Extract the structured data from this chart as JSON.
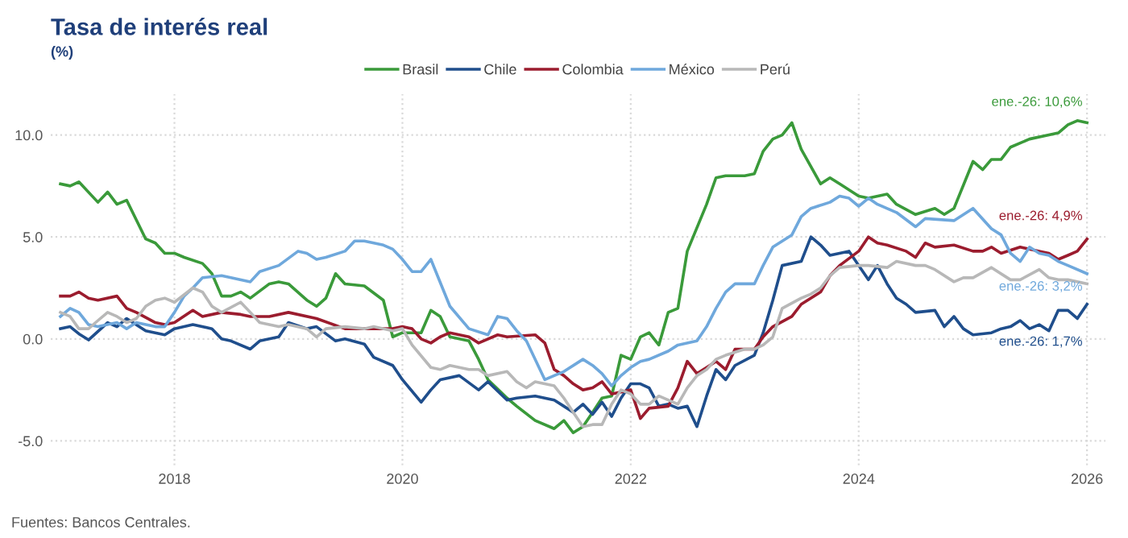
{
  "chart_data": {
    "type": "line",
    "title": "Tasa de interés real",
    "subtitle": "(%)",
    "series": [
      {
        "name": "Brasil",
        "color": "#3a9a3a",
        "x": [
          "2017-01",
          "2017-02",
          "2017-03",
          "2017-05",
          "2017-06",
          "2017-07",
          "2017-08",
          "2017-10",
          "2017-11",
          "2017-12",
          "2018-01",
          "2018-02",
          "2018-04",
          "2018-05",
          "2018-06",
          "2018-07",
          "2018-08",
          "2018-09",
          "2018-11",
          "2018-12",
          "2019-01",
          "2019-03",
          "2019-04",
          "2019-05",
          "2019-06",
          "2019-07",
          "2019-09",
          "2019-11",
          "2019-12",
          "2020-01",
          "2020-03",
          "2020-04",
          "2020-05",
          "2020-06",
          "2020-08",
          "2020-09",
          "2020-10",
          "2020-12",
          "2021-01",
          "2021-03",
          "2021-05",
          "2021-06",
          "2021-07",
          "2021-08",
          "2021-09",
          "2021-10",
          "2021-11",
          "2021-12",
          "2022-01",
          "2022-02",
          "2022-03",
          "2022-04",
          "2022-05",
          "2022-06",
          "2022-07",
          "2022-09",
          "2022-10",
          "2022-11",
          "2023-01",
          "2023-02",
          "2023-03",
          "2023-04",
          "2023-05",
          "2023-06",
          "2023-07",
          "2023-09",
          "2023-10",
          "2023-11",
          "2024-01",
          "2024-02",
          "2024-04",
          "2024-05",
          "2024-07",
          "2024-09",
          "2024-10",
          "2024-11",
          "2025-01",
          "2025-02",
          "2025-03",
          "2025-04",
          "2025-05",
          "2025-07",
          "2025-09",
          "2025-10",
          "2025-11",
          "2025-12",
          "2026-01"
        ],
        "values": [
          7.6,
          7.5,
          7.7,
          6.7,
          7.2,
          6.6,
          6.8,
          4.9,
          4.7,
          4.2,
          4.2,
          4.0,
          3.7,
          3.2,
          2.1,
          2.1,
          2.3,
          2.0,
          2.7,
          2.8,
          2.7,
          1.9,
          1.6,
          2.0,
          3.2,
          2.7,
          2.6,
          1.9,
          0.1,
          0.3,
          0.3,
          1.4,
          1.1,
          0.1,
          -0.1,
          -1.0,
          -2.0,
          -2.9,
          -3.3,
          -4.0,
          -4.4,
          -4.0,
          -4.6,
          -4.3,
          -3.6,
          -2.9,
          -2.8,
          -0.8,
          -1.0,
          0.1,
          0.3,
          -0.3,
          1.3,
          1.5,
          4.3,
          6.6,
          7.9,
          8.0,
          8.0,
          8.1,
          9.2,
          9.8,
          10.0,
          10.6,
          9.3,
          7.6,
          7.9,
          7.6,
          7.0,
          6.9,
          7.1,
          6.6,
          6.1,
          6.4,
          6.1,
          6.4,
          8.7,
          8.3,
          8.8,
          8.8,
          9.4,
          9.8,
          10.0,
          10.1,
          10.5,
          10.7,
          10.6
        ]
      },
      {
        "name": "Chile",
        "color": "#1f4e8c",
        "x": [
          "2017-01",
          "2017-02",
          "2017-03",
          "2017-04",
          "2017-06",
          "2017-07",
          "2017-08",
          "2017-10",
          "2017-12",
          "2018-01",
          "2018-03",
          "2018-05",
          "2018-06",
          "2018-07",
          "2018-09",
          "2018-10",
          "2018-12",
          "2019-01",
          "2019-03",
          "2019-04",
          "2019-06",
          "2019-07",
          "2019-09",
          "2019-10",
          "2019-12",
          "2020-01",
          "2020-03",
          "2020-04",
          "2020-05",
          "2020-07",
          "2020-09",
          "2020-10",
          "2020-12",
          "2021-01",
          "2021-03",
          "2021-05",
          "2021-06",
          "2021-07",
          "2021-08",
          "2021-09",
          "2021-10",
          "2021-11",
          "2021-12",
          "2022-01",
          "2022-02",
          "2022-03",
          "2022-04",
          "2022-05",
          "2022-06",
          "2022-07",
          "2022-08",
          "2022-09",
          "2022-10",
          "2022-11",
          "2022-12",
          "2023-02",
          "2023-03",
          "2023-04",
          "2023-05",
          "2023-07",
          "2023-08",
          "2023-09",
          "2023-10",
          "2023-12",
          "2024-02",
          "2024-03",
          "2024-04",
          "2024-05",
          "2024-06",
          "2024-07",
          "2024-09",
          "2024-10",
          "2024-11",
          "2024-12",
          "2025-01",
          "2025-03",
          "2025-04",
          "2025-05",
          "2025-06",
          "2025-07",
          "2025-08",
          "2025-09",
          "2025-10",
          "2025-11",
          "2025-12",
          "2026-01"
        ],
        "values": [
          0.5,
          0.6,
          0.25,
          -0.05,
          0.8,
          0.6,
          1.0,
          0.4,
          0.2,
          0.5,
          0.7,
          0.5,
          0.0,
          -0.1,
          -0.5,
          -0.1,
          0.1,
          0.8,
          0.5,
          0.6,
          -0.1,
          0.0,
          -0.25,
          -0.9,
          -1.3,
          -2.0,
          -3.1,
          -2.5,
          -2.0,
          -1.8,
          -2.5,
          -2.1,
          -3.0,
          -2.9,
          -2.8,
          -3.0,
          -3.3,
          -3.6,
          -3.2,
          -3.7,
          -3.1,
          -3.8,
          -2.9,
          -2.2,
          -2.2,
          -2.4,
          -3.3,
          -3.2,
          -3.4,
          -3.3,
          -4.3,
          -2.8,
          -1.5,
          -2.0,
          -1.3,
          -0.8,
          0.3,
          1.9,
          3.6,
          3.8,
          5.0,
          4.6,
          4.1,
          4.3,
          2.9,
          3.6,
          2.7,
          2.0,
          1.7,
          1.3,
          1.4,
          0.6,
          1.1,
          0.5,
          0.2,
          0.3,
          0.5,
          0.6,
          0.9,
          0.5,
          0.7,
          0.4,
          1.4,
          1.4,
          1.0,
          1.7
        ]
      },
      {
        "name": "Colombia",
        "color": "#9b1c2e",
        "x": [
          "2017-01",
          "2017-02",
          "2017-03",
          "2017-04",
          "2017-05",
          "2017-07",
          "2017-08",
          "2017-09",
          "2017-11",
          "2017-12",
          "2018-01",
          "2018-03",
          "2018-04",
          "2018-06",
          "2018-08",
          "2018-09",
          "2018-11",
          "2019-01",
          "2019-04",
          "2019-07",
          "2019-10",
          "2019-12",
          "2020-01",
          "2020-02",
          "2020-03",
          "2020-04",
          "2020-05",
          "2020-06",
          "2020-08",
          "2020-09",
          "2020-11",
          "2020-12",
          "2021-03",
          "2021-04",
          "2021-05",
          "2021-06",
          "2021-07",
          "2021-08",
          "2021-09",
          "2021-10",
          "2021-11",
          "2022-01",
          "2022-02",
          "2022-03",
          "2022-05",
          "2022-06",
          "2022-07",
          "2022-08",
          "2022-09",
          "2022-10",
          "2022-11",
          "2022-12",
          "2023-02",
          "2023-03",
          "2023-04",
          "2023-06",
          "2023-07",
          "2023-09",
          "2023-10",
          "2023-11",
          "2024-01",
          "2024-02",
          "2024-03",
          "2024-04",
          "2024-06",
          "2024-07",
          "2024-08",
          "2024-09",
          "2024-11",
          "2025-01",
          "2025-02",
          "2025-03",
          "2025-04",
          "2025-06",
          "2025-08",
          "2025-09",
          "2025-10",
          "2025-11",
          "2025-12",
          "2026-01"
        ],
        "values": [
          2.1,
          2.1,
          2.3,
          2.0,
          1.9,
          2.1,
          1.5,
          1.3,
          0.8,
          0.7,
          0.8,
          1.4,
          1.1,
          1.3,
          1.2,
          1.1,
          1.1,
          1.3,
          1.0,
          0.5,
          0.5,
          0.5,
          0.6,
          0.5,
          0.0,
          -0.2,
          0.1,
          0.3,
          0.1,
          -0.2,
          0.2,
          0.1,
          0.2,
          -0.2,
          -1.5,
          -1.8,
          -2.2,
          -2.5,
          -2.4,
          -2.1,
          -2.7,
          -2.5,
          -3.9,
          -3.4,
          -3.3,
          -2.4,
          -1.1,
          -1.7,
          -1.4,
          -1.1,
          -1.5,
          -0.5,
          -0.5,
          0.1,
          0.6,
          1.1,
          1.7,
          2.3,
          3.1,
          3.6,
          4.3,
          5.0,
          4.7,
          4.6,
          4.3,
          4.0,
          4.7,
          4.5,
          4.6,
          4.3,
          4.3,
          4.5,
          4.2,
          4.5,
          4.3,
          4.2,
          3.9,
          4.1,
          4.3,
          4.9
        ]
      },
      {
        "name": "México",
        "color": "#6fa8dc",
        "x": [
          "2017-01",
          "2017-02",
          "2017-03",
          "2017-04",
          "2017-05",
          "2017-07",
          "2017-08",
          "2017-09",
          "2017-11",
          "2017-12",
          "2018-01",
          "2018-02",
          "2018-03",
          "2018-04",
          "2018-06",
          "2018-07",
          "2018-09",
          "2018-10",
          "2018-12",
          "2019-02",
          "2019-03",
          "2019-04",
          "2019-05",
          "2019-07",
          "2019-08",
          "2019-09",
          "2019-11",
          "2019-12",
          "2020-01",
          "2020-02",
          "2020-03",
          "2020-04",
          "2020-06",
          "2020-08",
          "2020-10",
          "2020-11",
          "2020-12",
          "2021-01",
          "2021-02",
          "2021-04",
          "2021-05",
          "2021-06",
          "2021-08",
          "2021-09",
          "2021-10",
          "2021-11",
          "2021-12",
          "2022-01",
          "2022-02",
          "2022-03",
          "2022-05",
          "2022-06",
          "2022-08",
          "2022-09",
          "2022-10",
          "2022-11",
          "2022-12",
          "2023-02",
          "2023-03",
          "2023-04",
          "2023-06",
          "2023-07",
          "2023-08",
          "2023-10",
          "2023-11",
          "2023-12",
          "2024-01",
          "2024-02",
          "2024-03",
          "2024-05",
          "2024-07",
          "2024-08",
          "2024-11",
          "2025-01",
          "2025-03",
          "2025-04",
          "2025-05",
          "2025-06",
          "2025-07",
          "2025-08",
          "2025-09",
          "2025-10",
          "2025-11",
          "2026-01"
        ],
        "values": [
          1.1,
          1.5,
          1.3,
          0.7,
          0.6,
          0.8,
          0.5,
          0.8,
          0.6,
          0.6,
          1.3,
          2.1,
          2.5,
          3.0,
          3.1,
          3.0,
          2.8,
          3.3,
          3.6,
          4.3,
          4.2,
          3.9,
          4.0,
          4.3,
          4.8,
          4.8,
          4.6,
          4.4,
          3.9,
          3.3,
          3.3,
          3.9,
          1.6,
          0.5,
          0.2,
          1.1,
          1.0,
          0.4,
          -0.1,
          -2.0,
          -1.8,
          -1.6,
          -1.0,
          -1.3,
          -1.7,
          -2.3,
          -1.8,
          -1.4,
          -1.1,
          -1.0,
          -0.6,
          -0.3,
          -0.1,
          0.6,
          1.5,
          2.3,
          2.7,
          2.7,
          3.6,
          4.5,
          5.1,
          6.0,
          6.4,
          6.7,
          7.0,
          6.9,
          6.5,
          6.9,
          6.6,
          6.2,
          5.5,
          5.9,
          5.8,
          6.4,
          5.4,
          5.1,
          4.2,
          3.8,
          4.5,
          4.2,
          4.1,
          3.8,
          3.6,
          3.2
        ]
      },
      {
        "name": "Perú",
        "color": "#b8b8b8",
        "x": [
          "2017-01",
          "2017-02",
          "2017-03",
          "2017-04",
          "2017-05",
          "2017-06",
          "2017-07",
          "2017-08",
          "2017-09",
          "2017-10",
          "2017-11",
          "2017-12",
          "2018-01",
          "2018-03",
          "2018-04",
          "2018-05",
          "2018-06",
          "2018-08",
          "2018-09",
          "2018-10",
          "2018-12",
          "2019-01",
          "2019-03",
          "2019-04",
          "2019-05",
          "2019-07",
          "2019-09",
          "2019-10",
          "2019-12",
          "2020-01",
          "2020-02",
          "2020-04",
          "2020-05",
          "2020-06",
          "2020-08",
          "2020-09",
          "2020-10",
          "2020-12",
          "2021-01",
          "2021-02",
          "2021-03",
          "2021-05",
          "2021-06",
          "2021-07",
          "2021-08",
          "2021-09",
          "2021-10",
          "2021-11",
          "2021-12",
          "2022-01",
          "2022-02",
          "2022-03",
          "2022-04",
          "2022-06",
          "2022-07",
          "2022-08",
          "2022-09",
          "2022-10",
          "2022-11",
          "2023-01",
          "2023-02",
          "2023-03",
          "2023-04",
          "2023-05",
          "2023-07",
          "2023-08",
          "2023-09",
          "2023-10",
          "2023-11",
          "2024-01",
          "2024-02",
          "2024-04",
          "2024-05",
          "2024-07",
          "2024-08",
          "2024-09",
          "2024-11",
          "2024-12",
          "2025-01",
          "2025-03",
          "2025-05",
          "2025-06",
          "2025-08",
          "2025-09",
          "2025-10",
          "2025-11",
          "2026-01"
        ],
        "values": [
          1.3,
          1.1,
          0.5,
          0.5,
          0.9,
          1.3,
          1.1,
          0.8,
          1.0,
          1.6,
          1.9,
          2.0,
          1.8,
          2.5,
          2.3,
          1.6,
          1.3,
          1.8,
          1.3,
          0.8,
          0.6,
          0.7,
          0.5,
          0.1,
          0.5,
          0.6,
          0.5,
          0.6,
          0.4,
          0.5,
          -0.3,
          -1.4,
          -1.5,
          -1.3,
          -1.5,
          -1.5,
          -1.8,
          -1.6,
          -2.1,
          -2.4,
          -2.1,
          -2.3,
          -2.9,
          -3.6,
          -4.3,
          -4.2,
          -4.2,
          -3.2,
          -2.5,
          -2.7,
          -3.2,
          -3.2,
          -2.8,
          -3.2,
          -2.4,
          -1.8,
          -1.5,
          -1.0,
          -0.8,
          -0.5,
          -0.5,
          -0.3,
          0.1,
          1.5,
          2.0,
          2.2,
          2.5,
          3.1,
          3.5,
          3.6,
          3.6,
          3.5,
          3.8,
          3.6,
          3.6,
          3.4,
          2.8,
          3.0,
          3.0,
          3.5,
          2.9,
          2.9,
          3.4,
          3.0,
          2.9,
          2.9,
          2.7
        ]
      }
    ],
    "xlim": [
      "2016-12-01",
      "2026-03-01"
    ],
    "xticks": [
      "2018",
      "2020",
      "2022",
      "2024",
      "2026"
    ],
    "ylim": [
      -6.2,
      12
    ],
    "yticks": [
      {
        "value": -5,
        "label": "-5.0"
      },
      {
        "value": 0,
        "label": "0.0"
      },
      {
        "value": 5,
        "label": "5.0"
      },
      {
        "value": 10,
        "label": "10.0"
      }
    ],
    "grid": true,
    "legend": "top",
    "line_style": "solid",
    "marker": "none",
    "annotations": [
      {
        "text": "ene.-26: 10,6%",
        "x": "2026-01",
        "y": 10.6
      },
      {
        "text": "ene.-26: 4,9%",
        "x": "2026-01",
        "y": 4.9
      },
      {
        "text": "ene.-26: 3,2%",
        "x": "2026-01",
        "y": 3.2
      },
      {
        "text": "ene.-26: 1,7%",
        "x": "2026-01",
        "y": 1.7
      },
      "Fuentes: Bancos Centrales."
    ]
  }
}
